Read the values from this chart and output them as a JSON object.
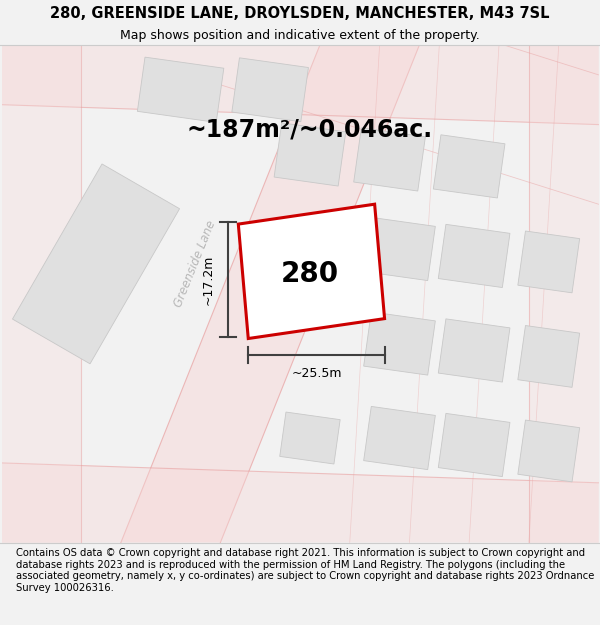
{
  "title_line1": "280, GREENSIDE LANE, DROYLSDEN, MANCHESTER, M43 7SL",
  "title_line2": "Map shows position and indicative extent of the property.",
  "area_text": "~187m²/~0.046ac.",
  "label_280": "280",
  "dim_width": "~25.5m",
  "dim_height": "~17.2m",
  "footer_text": "Contains OS data © Crown copyright and database right 2021. This information is subject to Crown copyright and database rights 2023 and is reproduced with the permission of HM Land Registry. The polygons (including the associated geometry, namely x, y co-ordinates) are subject to Crown copyright and database rights 2023 Ordnance Survey 100026316.",
  "bg_color": "#f2f2f2",
  "map_bg_color": "#ffffff",
  "road_fill_color": "#f7d8d8",
  "road_line_color": "#e8a0a0",
  "building_fill": "#e0e0e0",
  "building_edge": "#c8c8c8",
  "prop_color": "#cc0000",
  "street_label_color": "#b8b8b8",
  "dim_line_color": "#404040",
  "title_fontsize": 10.5,
  "subtitle_fontsize": 9,
  "area_fontsize": 17,
  "label_fontsize": 20,
  "footer_fontsize": 7.2,
  "street_fontsize": 8.5
}
